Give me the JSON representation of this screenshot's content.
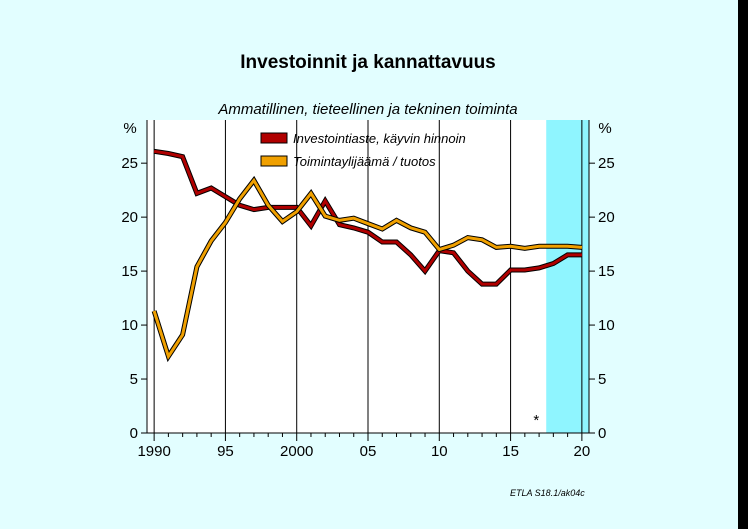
{
  "chart_data": {
    "type": "line",
    "title": "Investoinnit ja kannattavuus",
    "subtitle": "Ammatillinen, tieteellinen ja tekninen toiminta",
    "ylabel_left": "%",
    "ylabel_right": "%",
    "ylim": [
      0,
      29
    ],
    "xlim": [
      1989.5,
      2020.5
    ],
    "y_ticks": [
      0,
      5,
      10,
      15,
      20,
      25
    ],
    "x_ticks": [
      {
        "value": 1990,
        "label": "1990"
      },
      {
        "value": 1995,
        "label": "95"
      },
      {
        "value": 2000,
        "label": "2000"
      },
      {
        "value": 2005,
        "label": "05"
      },
      {
        "value": 2010,
        "label": "10"
      },
      {
        "value": 2015,
        "label": "15"
      },
      {
        "value": 2020,
        "label": "20"
      }
    ],
    "forecast_start": 2017.5,
    "forecast_marker": "*",
    "forecast_marker_x": 2016.8,
    "legend_placement": "top-center",
    "series": [
      {
        "name": "Investointiaste, käyvin hinnoin",
        "color": "#b00000",
        "x": [
          1990,
          1991,
          1992,
          1993,
          1994,
          1995,
          1996,
          1997,
          1998,
          1999,
          2000,
          2001,
          2002,
          2003,
          2004,
          2005,
          2006,
          2007,
          2008,
          2009,
          2010,
          2011,
          2012,
          2013,
          2014,
          2015,
          2016,
          2017,
          2018,
          2019,
          2020
        ],
        "values": [
          26.1,
          25.9,
          25.6,
          22.2,
          22.7,
          21.9,
          21.1,
          20.7,
          20.9,
          20.9,
          20.9,
          19.2,
          21.5,
          19.3,
          19.0,
          18.6,
          17.7,
          17.7,
          16.5,
          15.0,
          16.9,
          16.7,
          15.0,
          13.8,
          13.8,
          15.1,
          15.1,
          15.3,
          15.7,
          16.5,
          16.5
        ]
      },
      {
        "name": "Toimintaylijäämä / tuotos",
        "color": "#f0a000",
        "x": [
          1990,
          1991,
          1992,
          1993,
          1994,
          1995,
          1996,
          1997,
          1998,
          1999,
          2000,
          2001,
          2002,
          2003,
          2004,
          2005,
          2006,
          2007,
          2008,
          2009,
          2010,
          2011,
          2012,
          2013,
          2014,
          2015,
          2016,
          2017,
          2018,
          2019,
          2020
        ],
        "values": [
          11.3,
          7.1,
          9.1,
          15.4,
          17.8,
          19.5,
          21.7,
          23.4,
          21.1,
          19.6,
          20.5,
          22.2,
          20.1,
          19.7,
          19.9,
          19.4,
          18.9,
          19.7,
          19.0,
          18.6,
          17.0,
          17.4,
          18.1,
          17.9,
          17.2,
          17.3,
          17.1,
          17.3,
          17.3,
          17.3,
          17.2
        ]
      }
    ]
  },
  "source_note": "ETLA S18.1/ak04c"
}
